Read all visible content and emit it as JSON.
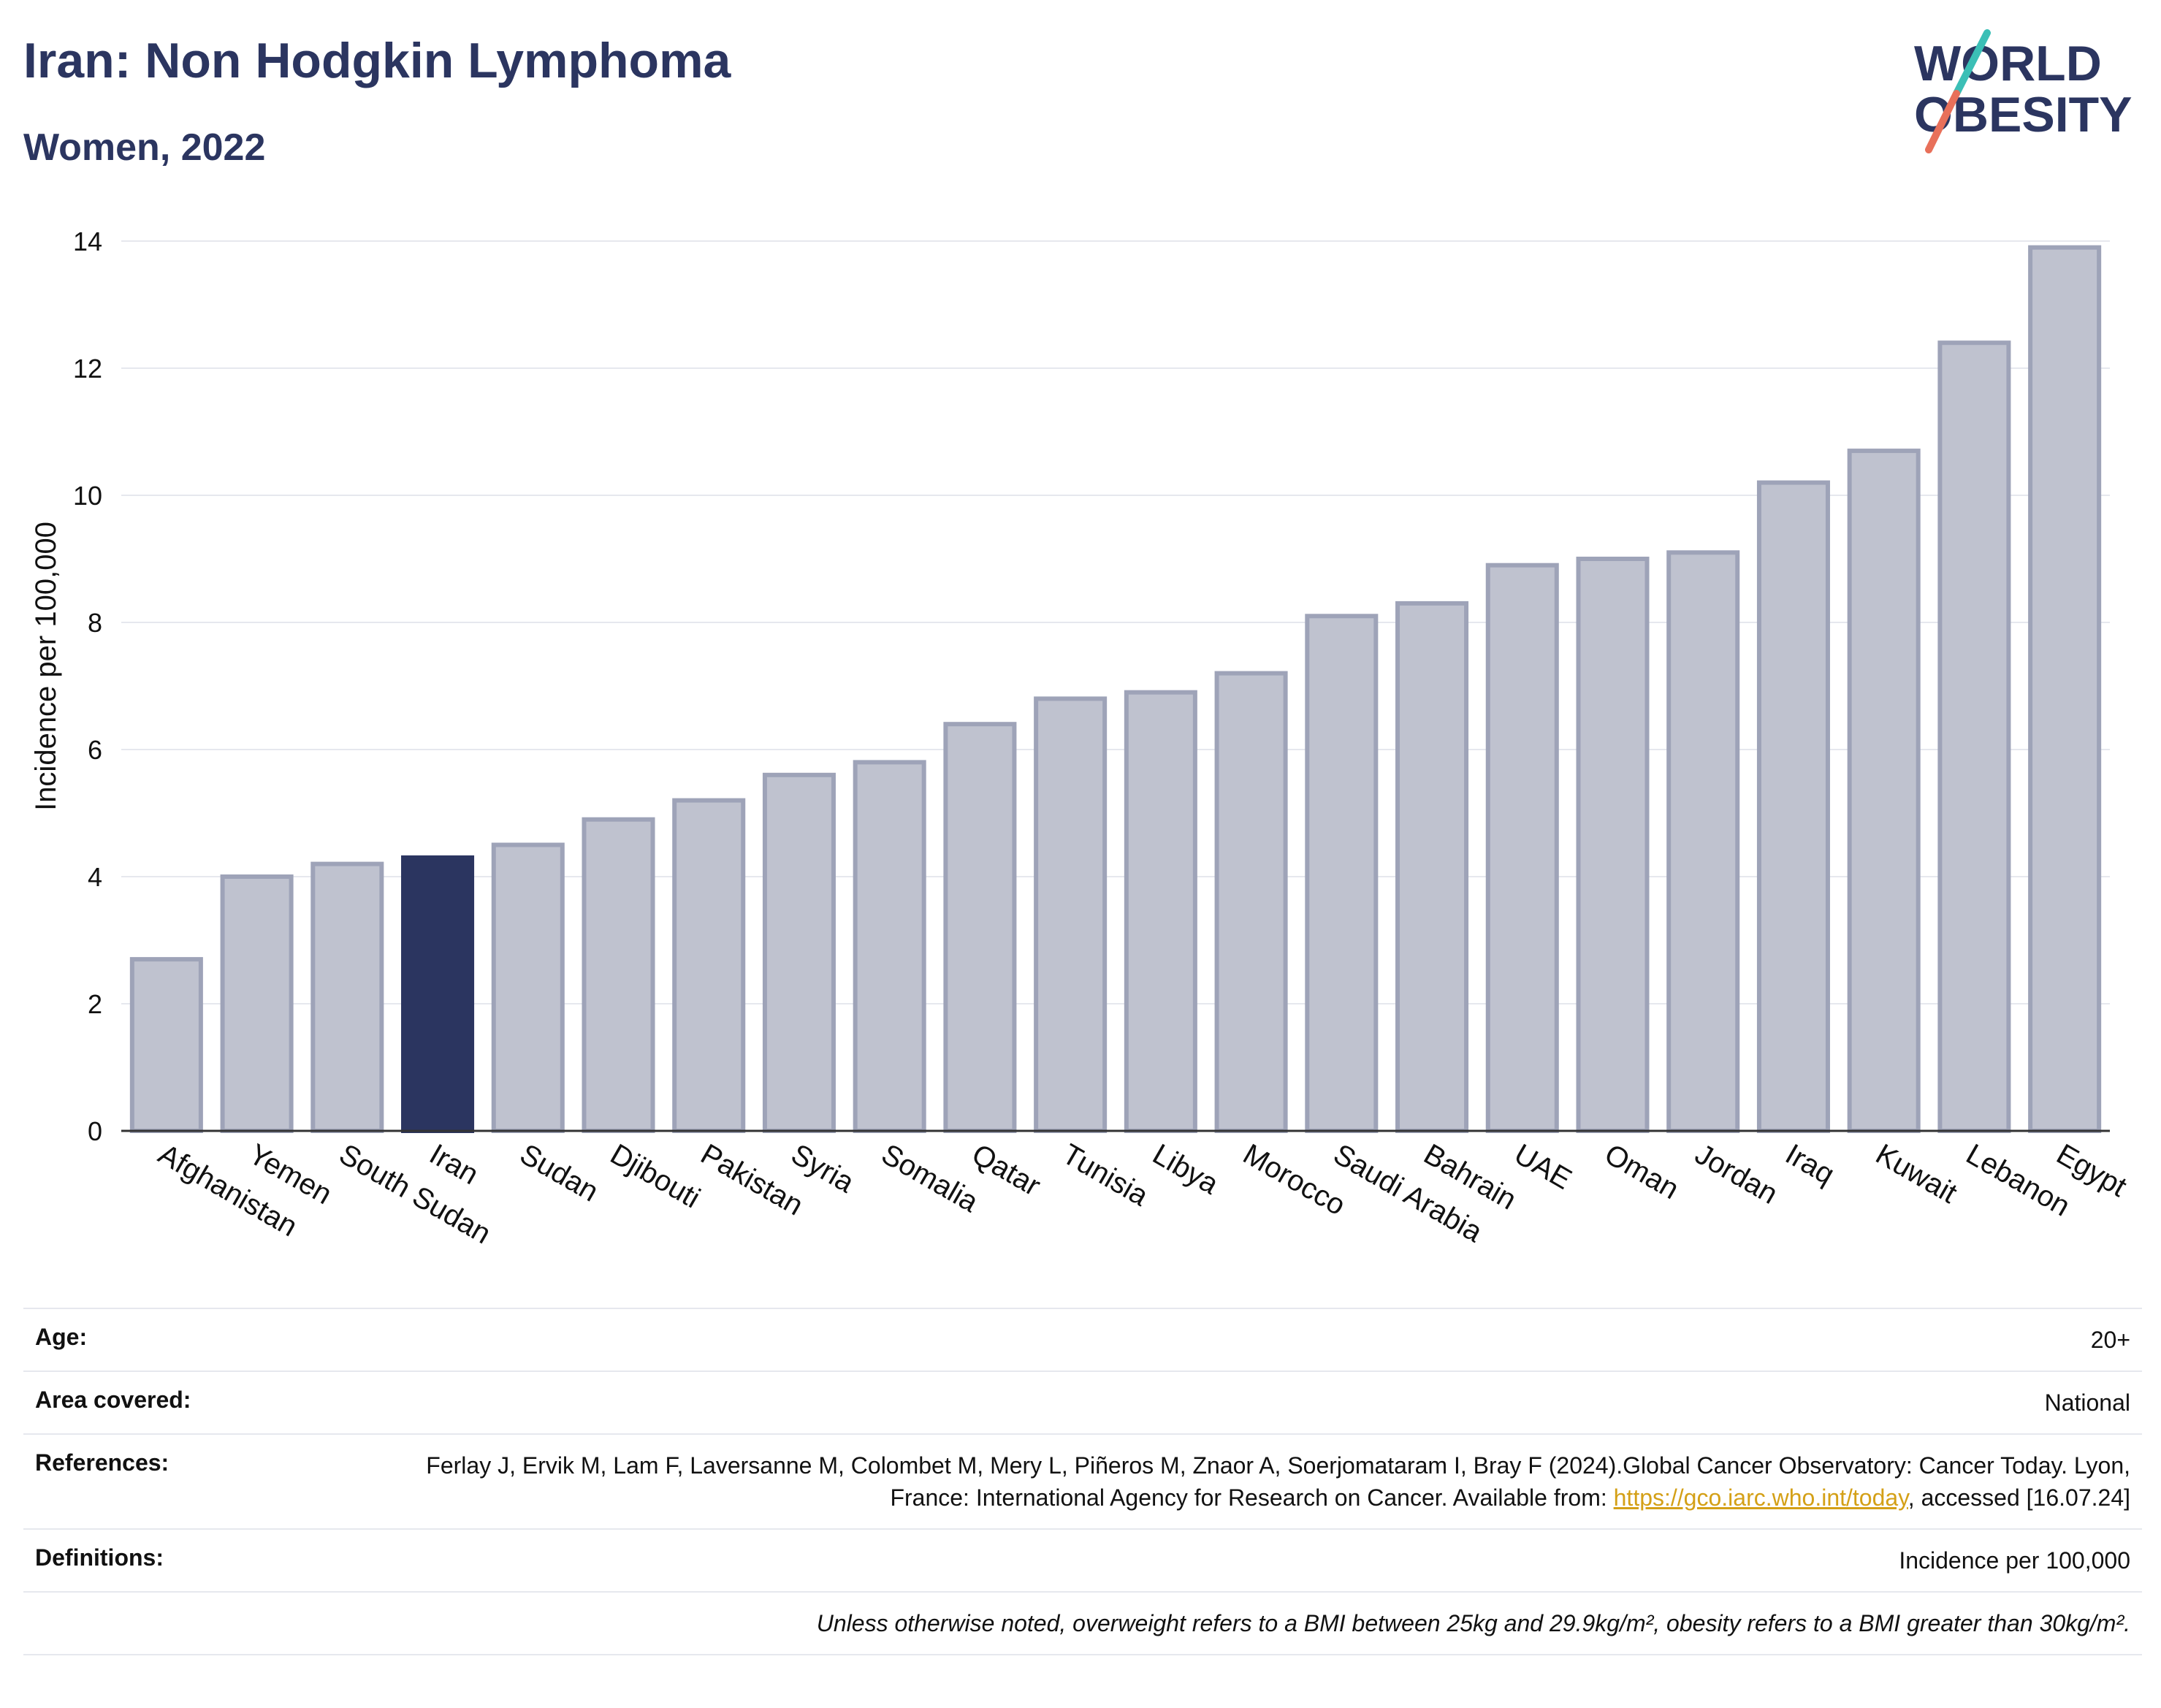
{
  "header": {
    "title": "Iran: Non Hodgkin Lymphoma",
    "subtitle": "Women, 2022"
  },
  "logo": {
    "line1": "WORLD",
    "line2": "OBESITY",
    "stroke_teal": "#3bbfb6",
    "stroke_coral": "#e8705a"
  },
  "colors": {
    "highlight": "#2b3560",
    "bar_fill": "#bfc2cf",
    "bar_stroke": "#9ea3b8",
    "grid": "#e6e8ee"
  },
  "chart_data": {
    "type": "bar",
    "ylabel": "Incidence per 100,000",
    "ylim": [
      0,
      14
    ],
    "yticks": [
      0,
      2,
      4,
      6,
      8,
      10,
      12,
      14
    ],
    "grid": true,
    "highlight": "Iran",
    "categories": [
      "Afghanistan",
      "Yemen",
      "South Sudan",
      "Iran",
      "Sudan",
      "Djibouti",
      "Pakistan",
      "Syria",
      "Somalia",
      "Qatar",
      "Tunisia",
      "Libya",
      "Morocco",
      "Saudi Arabia",
      "Bahrain",
      "UAE",
      "Oman",
      "Jordan",
      "Iraq",
      "Kuwait",
      "Lebanon",
      "Egypt"
    ],
    "values": [
      2.7,
      4.0,
      4.2,
      4.3,
      4.5,
      4.9,
      5.2,
      5.6,
      5.8,
      6.4,
      6.8,
      6.9,
      7.2,
      8.1,
      8.3,
      8.9,
      9.0,
      9.1,
      10.2,
      10.7,
      12.4,
      13.9
    ]
  },
  "meta": {
    "age_label": "Age:",
    "age_value": "20+",
    "area_label": "Area covered:",
    "area_value": "National",
    "ref_label": "References:",
    "ref_text_1": "Ferlay J, Ervik M, Lam F, Laversanne M, Colombet M, Mery L, Piñeros M, Znaor A, Soerjomataram I, Bray F (2024).Global Cancer Observatory: Cancer Today. Lyon, France: International Agency for Research on Cancer. Available from: ",
    "ref_link": "https://gco.iarc.who.int/today",
    "ref_text_2": ", accessed [16.07.24]",
    "def_label": "Definitions:",
    "def_value": "Incidence per 100,000",
    "note": "Unless otherwise noted, overweight refers to a BMI between 25kg and 29.9kg/m², obesity refers to a BMI greater than 30kg/m²."
  }
}
